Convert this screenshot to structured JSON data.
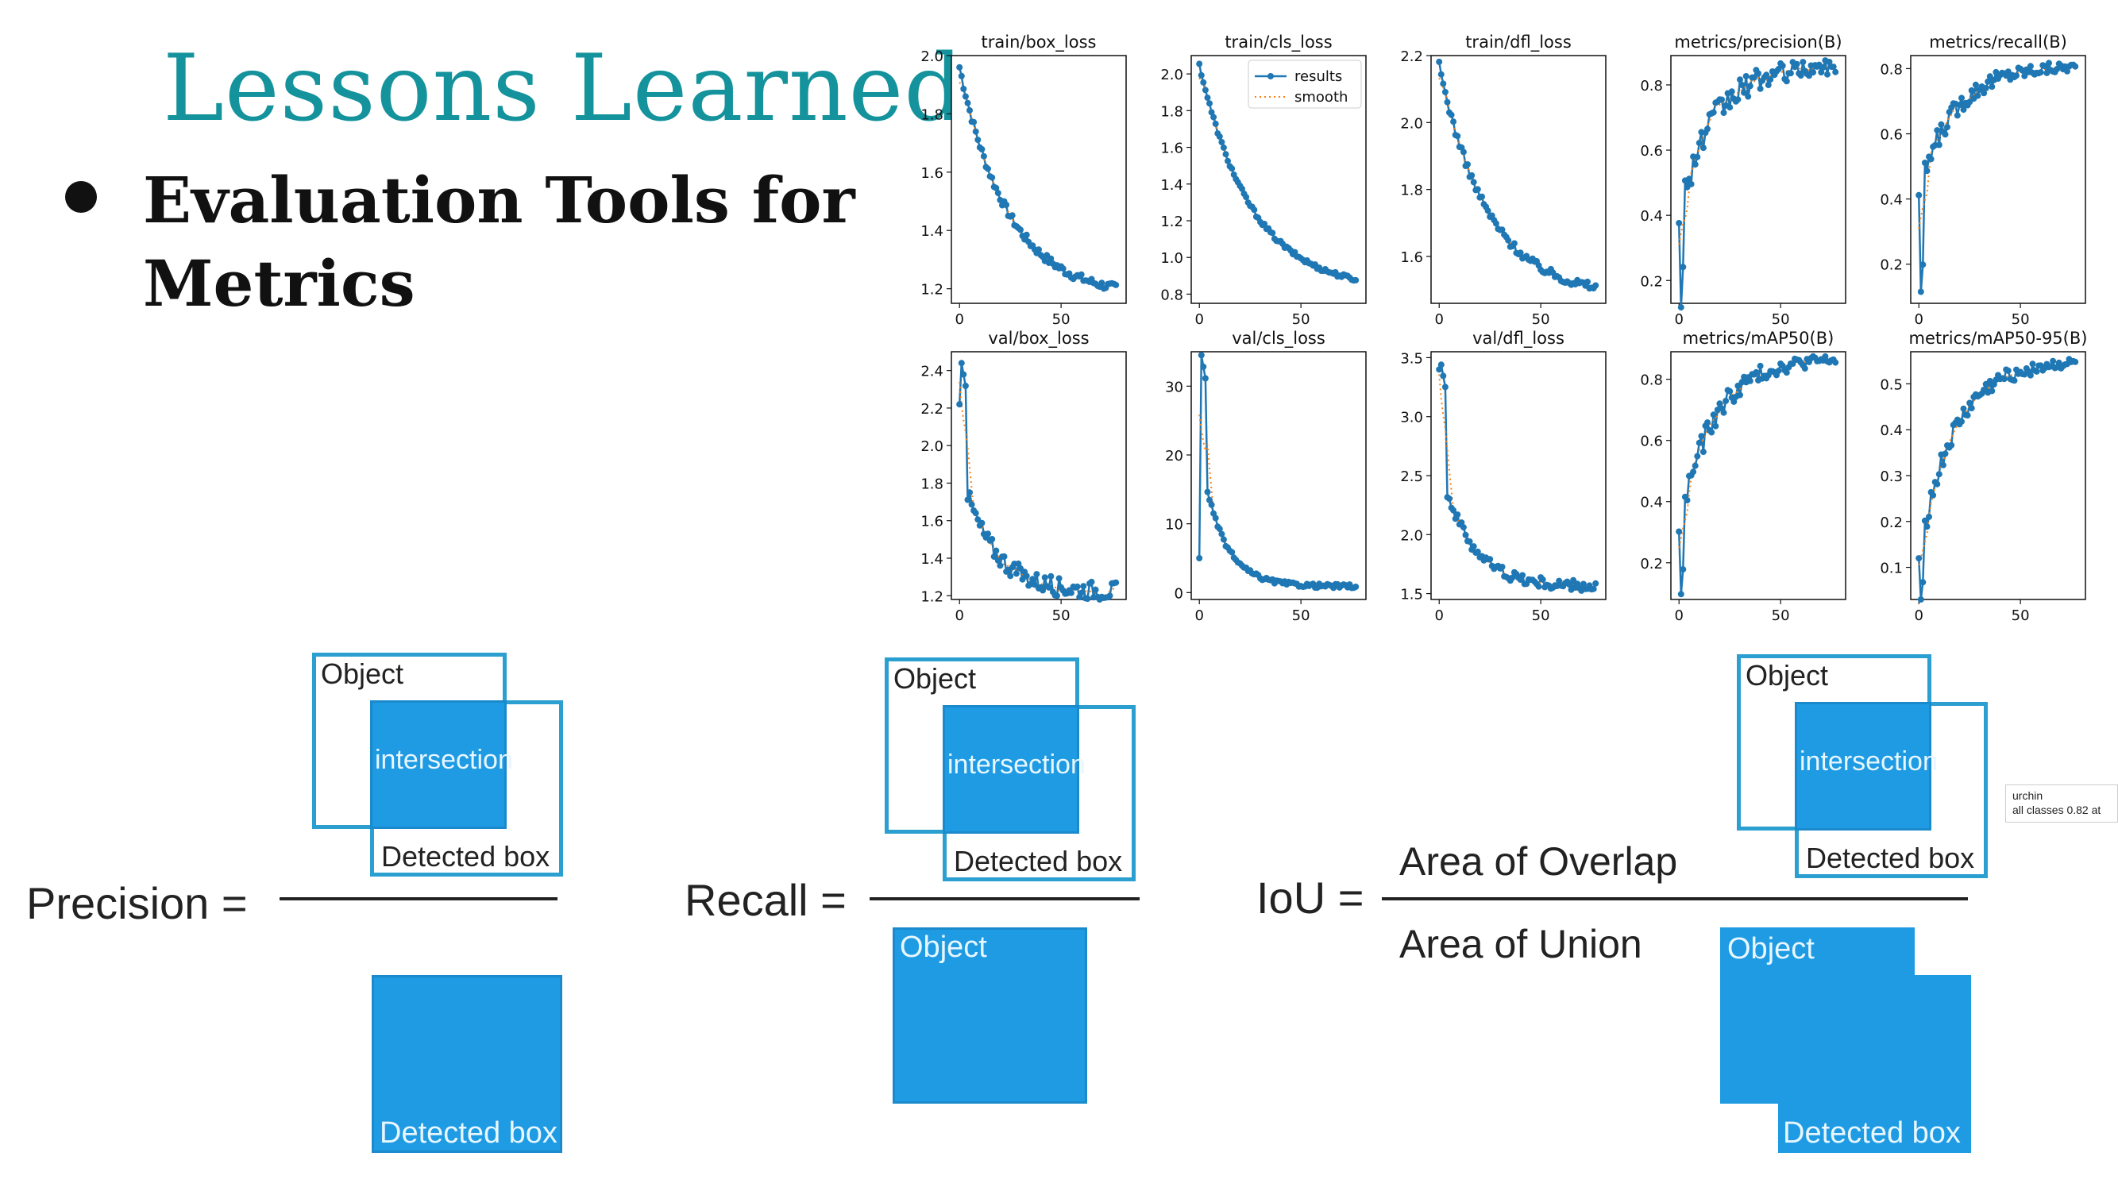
{
  "slide": {
    "title": "Lessons Learned",
    "bullet_line1": "Evaluation Tools for",
    "bullet_line2": "Metrics"
  },
  "legend": {
    "results": "results",
    "smooth": "smooth"
  },
  "colors": {
    "results": "#1f77b4",
    "smooth": "#ff7f0e",
    "title": "#15939c",
    "box_fill": "#1e9be3"
  },
  "chart_data": [
    {
      "type": "line",
      "title": "train/box_loss",
      "ylim": [
        1.15,
        2.0
      ],
      "yticks": [
        1.2,
        1.4,
        1.6,
        1.8,
        2.0
      ],
      "xticks": [
        0,
        50
      ],
      "xlim": [
        -4,
        82
      ],
      "shape": "decay",
      "start": 1.96,
      "end": 1.17,
      "rate": 3.2,
      "noise": 0.015,
      "legend": false
    },
    {
      "type": "line",
      "title": "train/cls_loss",
      "ylim": [
        0.75,
        2.1
      ],
      "yticks": [
        0.8,
        1.0,
        1.2,
        1.4,
        1.6,
        1.8,
        2.0
      ],
      "xticks": [
        0,
        50
      ],
      "xlim": [
        -4,
        82
      ],
      "shape": "decay",
      "start": 2.05,
      "end": 0.82,
      "rate": 3.0,
      "noise": 0.012,
      "legend": true
    },
    {
      "type": "line",
      "title": "train/dfl_loss",
      "ylim": [
        1.46,
        2.2
      ],
      "yticks": [
        1.6,
        1.8,
        2.0,
        2.2
      ],
      "xticks": [
        0,
        50
      ],
      "xlim": [
        -4,
        82
      ],
      "shape": "decay",
      "start": 2.17,
      "end": 1.48,
      "rate": 3.2,
      "noise": 0.013,
      "legend": false
    },
    {
      "type": "line",
      "title": "metrics/precision(B)",
      "ylim": [
        0.13,
        0.89
      ],
      "yticks": [
        0.2,
        0.4,
        0.6,
        0.8
      ],
      "xticks": [
        0,
        50
      ],
      "xlim": [
        -4,
        82
      ],
      "shape": "grow",
      "start": 0.41,
      "end": 0.86,
      "rate": 4.5,
      "noise": 0.05,
      "dip": 0.16,
      "legend": false
    },
    {
      "type": "line",
      "title": "metrics/recall(B)",
      "ylim": [
        0.08,
        0.84
      ],
      "yticks": [
        0.2,
        0.4,
        0.6,
        0.8
      ],
      "xticks": [
        0,
        50
      ],
      "xlim": [
        -4,
        82
      ],
      "shape": "grow",
      "start": 0.42,
      "end": 0.81,
      "rate": 4.5,
      "noise": 0.035,
      "dip": 0.11,
      "legend": false
    },
    {
      "type": "line",
      "title": "val/box_loss",
      "ylim": [
        1.18,
        2.5
      ],
      "yticks": [
        1.2,
        1.4,
        1.6,
        1.8,
        2.0,
        2.2,
        2.4
      ],
      "xticks": [
        0,
        50
      ],
      "xlim": [
        -4,
        82
      ],
      "shape": "spikedecay",
      "start": 2.22,
      "peak": 2.44,
      "end": 1.22,
      "rate": 5,
      "noise": 0.05,
      "legend": false
    },
    {
      "type": "line",
      "title": "val/cls_loss",
      "ylim": [
        -1,
        35
      ],
      "yticks": [
        0,
        10,
        20,
        30
      ],
      "xticks": [
        0,
        50
      ],
      "xlim": [
        -4,
        82
      ],
      "shape": "spikedecay",
      "start": 5,
      "peak": 34.5,
      "end": 0.9,
      "rate": 7,
      "noise": 0.3,
      "legend": false
    },
    {
      "type": "line",
      "title": "val/dfl_loss",
      "ylim": [
        1.45,
        3.55
      ],
      "yticks": [
        1.5,
        2.0,
        2.5,
        3.0,
        3.5
      ],
      "xticks": [
        0,
        50
      ],
      "xlim": [
        -4,
        82
      ],
      "shape": "spikedecay",
      "start": 3.4,
      "peak": 3.44,
      "end": 1.55,
      "rate": 5,
      "noise": 0.05,
      "legend": false
    },
    {
      "type": "line",
      "title": "metrics/mAP50(B)",
      "ylim": [
        0.08,
        0.89
      ],
      "yticks": [
        0.2,
        0.4,
        0.6,
        0.8
      ],
      "xticks": [
        0,
        50
      ],
      "xlim": [
        -4,
        82
      ],
      "shape": "grow",
      "start": 0.32,
      "end": 0.87,
      "rate": 4.5,
      "noise": 0.04,
      "dip": 0.09,
      "legend": false
    },
    {
      "type": "line",
      "title": "metrics/mAP50-95(B)",
      "ylim": [
        0.03,
        0.57
      ],
      "yticks": [
        0.1,
        0.2,
        0.3,
        0.4,
        0.5
      ],
      "xticks": [
        0,
        50
      ],
      "xlim": [
        -4,
        82
      ],
      "shape": "grow",
      "start": 0.12,
      "end": 0.55,
      "rate": 4.5,
      "noise": 0.025,
      "dip": 0.05,
      "legend": false
    }
  ],
  "diagrams": {
    "object": "Object",
    "intersection": "intersection",
    "detected_box": "Detected box",
    "precision_label": "Precision =",
    "recall_label": "Recall =",
    "iou_label": "IoU =",
    "area_overlap": "Area of Overlap",
    "area_union": "Area of Union"
  },
  "tooltip": {
    "line1": "urchin",
    "line2": "all classes 0.82 at"
  }
}
